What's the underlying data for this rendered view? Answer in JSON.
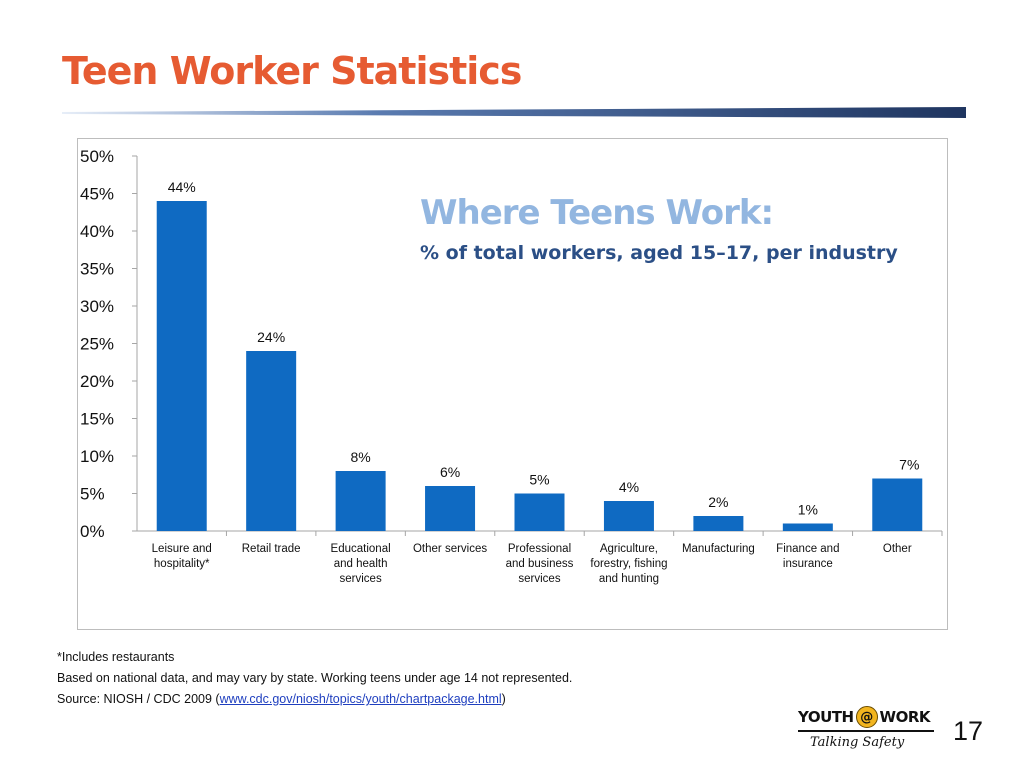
{
  "slide": {
    "title": "Teen Worker Statistics",
    "page_number": "17"
  },
  "colors": {
    "title": "#e65b32",
    "rule_dark": "#1f3560",
    "bar": "#0f6ac2",
    "heading_light": "#92b6e0",
    "heading_dark": "#2b4f86"
  },
  "chart_data": {
    "type": "bar",
    "title": "Where Teens Work:",
    "subtitle": "% of total workers, aged 15–17, per industry",
    "categories": [
      "Leisure and hospitality*",
      "Retail trade",
      "Educational and health services",
      "Other services",
      "Professional and business services",
      "Agriculture, forestry, fishing and hunting",
      "Manufacturing",
      "Finance and insurance",
      "Other"
    ],
    "category_lines": [
      [
        "Leisure and",
        "hospitality*"
      ],
      [
        "Retail trade"
      ],
      [
        "Educational",
        "and health",
        "services"
      ],
      [
        "Other services"
      ],
      [
        "Professional",
        "and business",
        "services"
      ],
      [
        "Agriculture,",
        "forestry, fishing",
        "and hunting"
      ],
      [
        "Manufacturing"
      ],
      [
        "Finance and",
        "insurance"
      ],
      [
        "Other"
      ]
    ],
    "values": [
      44,
      24,
      8,
      6,
      5,
      4,
      2,
      1,
      7
    ],
    "value_labels": [
      "44%",
      "24%",
      "8%",
      "6%",
      "5%",
      "4%",
      "2%",
      "1%",
      "7%"
    ],
    "y_ticks": [
      0,
      5,
      10,
      15,
      20,
      25,
      30,
      35,
      40,
      45,
      50
    ],
    "y_tick_labels": [
      "0%",
      "5%",
      "10%",
      "15%",
      "20%",
      "25%",
      "30%",
      "35%",
      "40%",
      "45%",
      "50%"
    ],
    "ylim": [
      0,
      50
    ],
    "xlabel": "",
    "ylabel": "",
    "grid": false,
    "legend": "none"
  },
  "footnotes": {
    "note1": "*Includes restaurants",
    "note2": "Based on national data, and may vary by state. Working teens under age 14 not represented.",
    "source_prefix": "Source: NIOSH / CDC 2009 (",
    "source_link": "www.cdc.gov/niosh/topics/youth/chartpackage.html",
    "source_suffix": ")"
  },
  "logo": {
    "word_left": "YOUTH",
    "at_symbol": "@",
    "word_right": "WORK",
    "tagline": "Talking Safety"
  }
}
